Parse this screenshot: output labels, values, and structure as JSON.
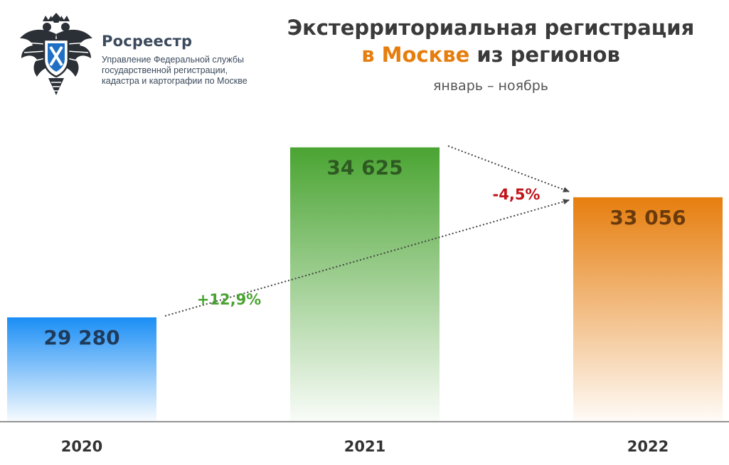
{
  "header": {
    "brand_name": "Росреестр",
    "brand_desc_1": "Управление Федеральной службы",
    "brand_desc_2": "государственной регистрации,",
    "brand_desc_3": "кадастра и картографии по Москве"
  },
  "chart_data": {
    "type": "bar",
    "title_line1": "Экстерриториальная регистрация",
    "title_line2_accent": "в Москве",
    "title_line2_rest": " из регионов",
    "subtitle": "январь – ноябрь",
    "categories": [
      "2020",
      "2021",
      "2022"
    ],
    "values": [
      29280,
      34625,
      33056
    ],
    "value_labels": [
      "29 280",
      "34 625",
      "33 056"
    ],
    "colors": [
      "#1a8ef5",
      "#4aa432",
      "#e67e0e"
    ],
    "value_label_colors": [
      "#1f3b5c",
      "#2e5a22",
      "#6a3a0c"
    ],
    "ylim": [
      26000,
      36000
    ],
    "grid": false,
    "annotations": [
      {
        "text": "+12,9%",
        "from": "2020",
        "to": "2022",
        "color": "#4aa432"
      },
      {
        "text": "-4,5%",
        "from": "2021",
        "to": "2022",
        "color": "#c0141b"
      }
    ]
  }
}
